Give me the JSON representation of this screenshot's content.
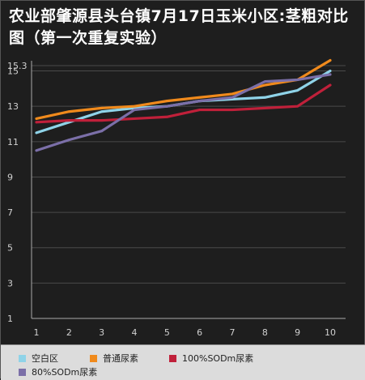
{
  "chart_data": {
    "type": "line",
    "title": "农业部肇源县头台镇7月17日玉米小区:茎粗对比图（第一次重复实验）",
    "categories": [
      "1",
      "2",
      "3",
      "4",
      "5",
      "6",
      "7",
      "8",
      "9",
      "10"
    ],
    "yticks": [
      "15.3",
      "15",
      "13",
      "11",
      "9",
      "7",
      "5",
      "3",
      "1"
    ],
    "ylim": [
      1,
      15.3
    ],
    "grid": true,
    "legend_position": "bottom",
    "series": [
      {
        "name": "空白区",
        "color": "#8fd3e8",
        "values": [
          11.5,
          12.1,
          12.7,
          12.9,
          13.0,
          13.3,
          13.4,
          13.5,
          13.9,
          15.0
        ]
      },
      {
        "name": "普通尿素",
        "color": "#f08a1c",
        "values": [
          12.3,
          12.7,
          12.9,
          13.0,
          13.3,
          13.5,
          13.7,
          14.2,
          14.5,
          15.6
        ]
      },
      {
        "name": "100%SODm尿素",
        "color": "#c0203a",
        "values": [
          12.1,
          12.2,
          12.2,
          12.3,
          12.4,
          12.8,
          12.8,
          12.9,
          13.0,
          14.2
        ]
      },
      {
        "name": "80%SODm尿素",
        "color": "#7b6fa8",
        "values": [
          10.5,
          11.1,
          11.6,
          12.8,
          13.0,
          13.3,
          13.5,
          14.4,
          14.5,
          14.8
        ]
      }
    ]
  }
}
